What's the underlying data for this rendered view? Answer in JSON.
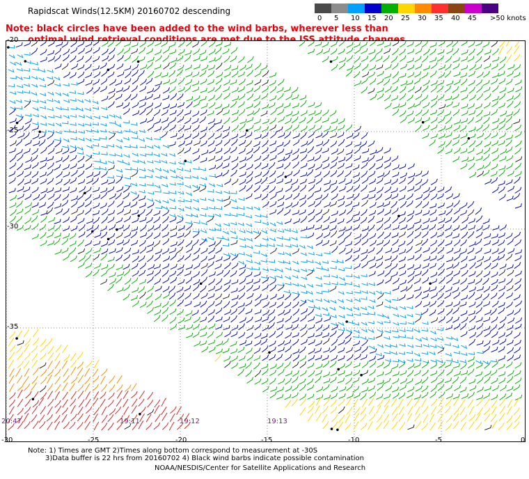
{
  "title": "Rapidscat Winds(12.5KM) 20160702 descending",
  "note_lines": [
    "Note: black circles have been added to the wind barbs, wherever less than",
    "optimal wind retrieval conditions are met due to the ISS attitude changes."
  ],
  "legend": {
    "labels": [
      "0",
      "5",
      "10",
      "15",
      "20",
      "25",
      "30",
      "35",
      "40",
      "45",
      ">50 knots"
    ],
    "colors": [
      "#4a4a4a",
      "#8c8c8c",
      "#00a0ff",
      "#0000cc",
      "#00b000",
      "#ffd700",
      "#ff8c00",
      "#ff3030",
      "#8b4513",
      "#cc00cc",
      "#4b0082"
    ]
  },
  "y_labels": [
    "-20",
    "-25",
    "-30",
    "-35"
  ],
  "x_labels": [
    "-30",
    "-25",
    "-20",
    "-15",
    "-10",
    "-5",
    "0"
  ],
  "time_labels": [
    "20:47",
    "19:11",
    "19:12",
    "19:13"
  ],
  "footer": {
    "line1": "Note: 1) Times are GMT 2)Times along bottom correspond to measurement at -30S",
    "line2": "3)Data buffer is 22 hrs from 20160702 4) Black wind barbs indicate possible contamination",
    "line3": "NOAA/NESDIS/Center for Satellite Applications and Research"
  }
}
